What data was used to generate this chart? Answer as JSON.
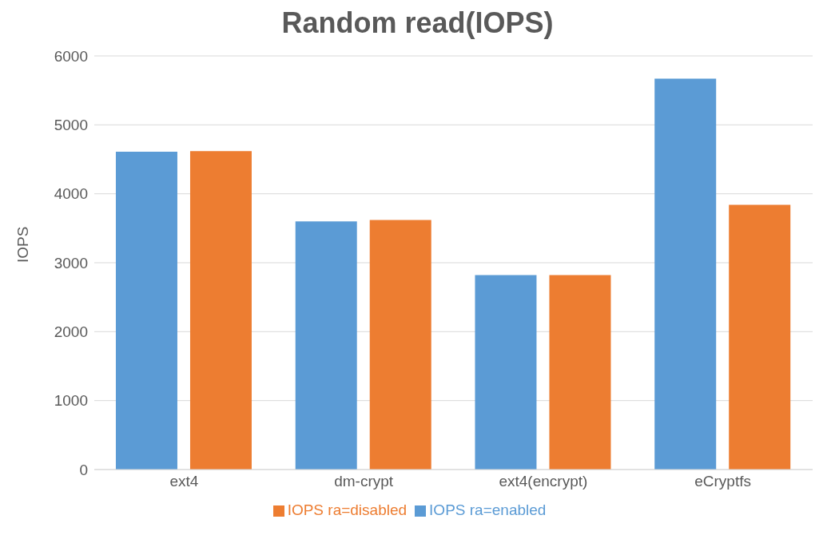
{
  "chart_data": {
    "type": "bar",
    "title": "Random read(IOPS)",
    "ylabel": "IOPS",
    "categories": [
      "ext4",
      "dm-crypt",
      "ext4(encrypt)",
      "eCryptfs"
    ],
    "series": [
      {
        "name": "IOPS ra=enabled",
        "color": "#5b9bd5",
        "values": [
          4610,
          3600,
          2820,
          5670
        ]
      },
      {
        "name": "IOPS ra=disabled",
        "color": "#ed7d31",
        "values": [
          4620,
          3620,
          2820,
          3840
        ]
      }
    ],
    "ylim": [
      0,
      6000
    ],
    "yticks": [
      0,
      1000,
      2000,
      3000,
      4000,
      5000,
      6000
    ],
    "grid": "y",
    "legend": "bottom"
  }
}
